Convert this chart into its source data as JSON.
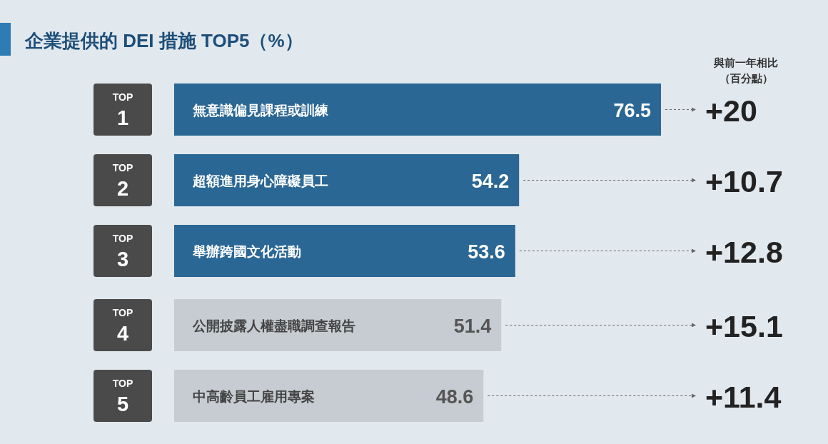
{
  "chart_data": {
    "type": "bar",
    "orientation": "horizontal",
    "title": "企業提供的 DEI 措施 TOP5（%）",
    "categories": [
      "無意識偏見課程或訓練",
      "超額進用身心障礙員工",
      "舉辦跨國文化活動",
      "公開披露人權盡職調查報告",
      "中高齡員工雇用專案"
    ],
    "values": [
      76.5,
      54.2,
      53.6,
      51.4,
      48.6
    ],
    "colors": [
      "#2a6794",
      "#2a6794",
      "#2a6794",
      "#c6ccd1",
      "#c6ccd1"
    ],
    "data_labels": true,
    "annotations": [
      "與前一年相比",
      "（百分點）",
      "TOP",
      "1",
      "+20",
      "TOP",
      "2",
      "+10.7",
      "TOP",
      "3",
      "+12.8",
      "TOP",
      "4",
      "+15.1",
      "TOP",
      "5",
      "+11.4"
    ]
  }
}
